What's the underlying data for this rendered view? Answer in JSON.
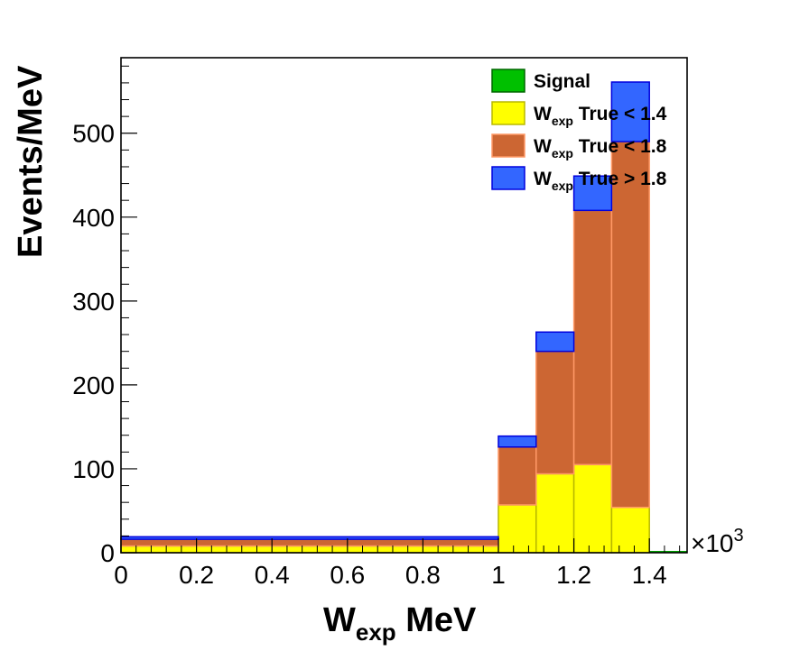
{
  "chart_data": {
    "type": "bar",
    "stacked": true,
    "histogram": true,
    "x_bin_edges": [
      0,
      1000,
      1100,
      1200,
      1300,
      1400,
      1500
    ],
    "series": [
      {
        "name": "Signal",
        "color": "#00c000",
        "values": [
          0,
          0,
          0,
          0,
          0,
          0
        ]
      },
      {
        "name": "True < 1.4",
        "color": "#ffff00",
        "values": [
          8,
          57,
          94,
          105,
          54,
          0
        ]
      },
      {
        "name": "True < 1.8",
        "color": "#cc6633",
        "values": [
          8,
          69,
          146,
          303,
          436,
          0
        ]
      },
      {
        "name": "True > 1.8",
        "color": "#3366ff",
        "values": [
          3,
          13,
          23,
          41,
          71,
          0
        ]
      }
    ],
    "legend_prefix": "W",
    "legend_prefix_sub": "exp",
    "xlabel_main": "W",
    "xlabel_sub": "exp",
    "xlabel_unit": " MeV",
    "ylabel": "Events/MeV",
    "xlim": [
      0,
      1500
    ],
    "ylim": [
      0,
      590
    ],
    "x_tick_labels": [
      "0",
      "0.2",
      "0.4",
      "0.6",
      "0.8",
      "1",
      "1.2",
      "1.4"
    ],
    "x_ticks": [
      0,
      200,
      400,
      600,
      800,
      1000,
      1200,
      1400
    ],
    "y_ticks": [
      0,
      100,
      200,
      300,
      400,
      500
    ],
    "y_tick_labels": [
      "0",
      "100",
      "200",
      "300",
      "400",
      "500"
    ],
    "x_exponent_label": "×10",
    "x_exponent_power": "3",
    "legend_placement": "top-right",
    "grid": false
  }
}
